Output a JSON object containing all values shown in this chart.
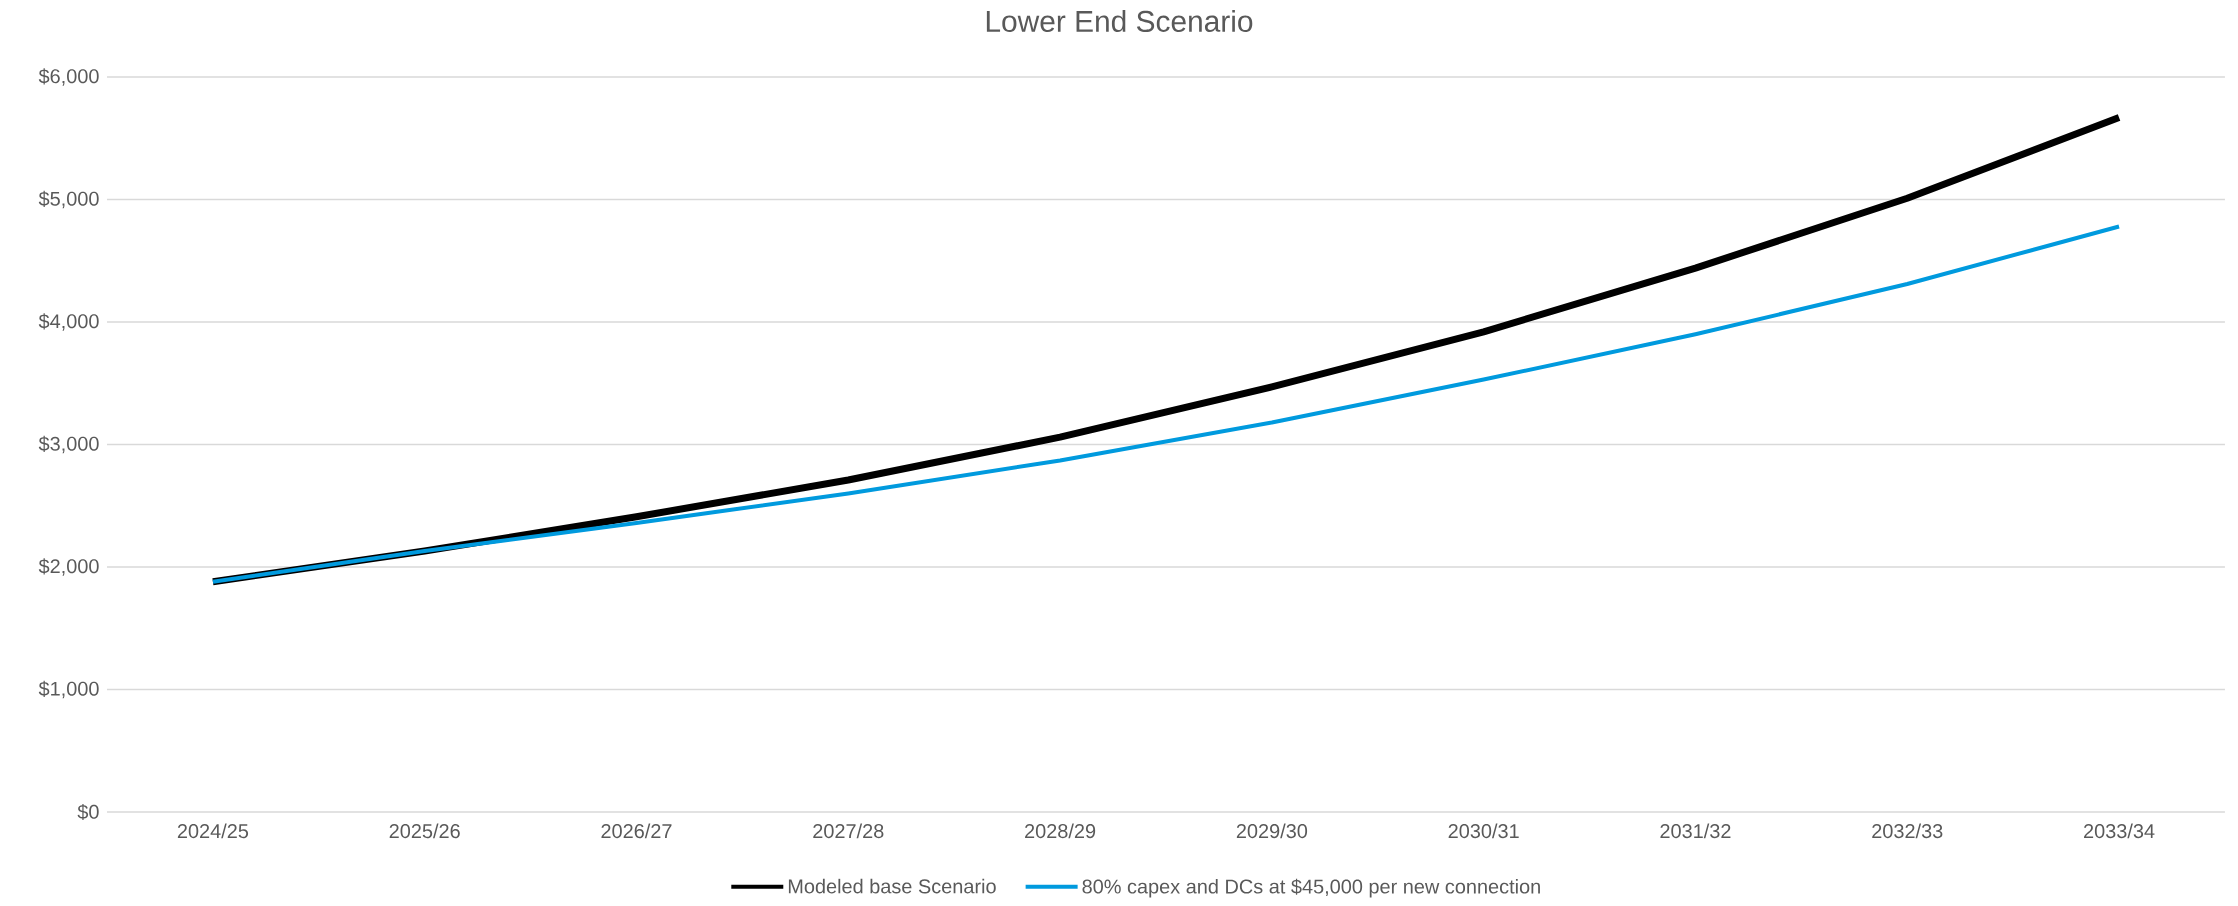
{
  "chart_data": {
    "type": "line",
    "title": "Lower End Scenario",
    "categories": [
      "2024/25",
      "2025/26",
      "2026/27",
      "2027/28",
      "2028/29",
      "2029/30",
      "2030/31",
      "2031/32",
      "2032/33",
      "2033/34"
    ],
    "series": [
      {
        "name": "Modeled base Scenario",
        "color": "#000000",
        "values": [
          1880,
          2130,
          2410,
          2710,
          3060,
          3470,
          3920,
          4440,
          5010,
          5670
        ]
      },
      {
        "name": "80% capex and DCs at $45,000 per new connection",
        "color": "#009ade",
        "values": [
          1880,
          2130,
          2360,
          2600,
          2870,
          3180,
          3530,
          3900,
          4310,
          4780
        ]
      }
    ],
    "ylim": [
      0,
      6000
    ],
    "yticks": [
      {
        "value": 0,
        "label": "$0"
      },
      {
        "value": 1000,
        "label": "$1,000"
      },
      {
        "value": 2000,
        "label": "$2,000"
      },
      {
        "value": 3000,
        "label": "$3,000"
      },
      {
        "value": 4000,
        "label": "$4,000"
      },
      {
        "value": 5000,
        "label": "$5,000"
      },
      {
        "value": 6000,
        "label": "$6,000"
      }
    ],
    "grid": "y",
    "legend": "bottom",
    "marker": "none",
    "line_style": "solid"
  }
}
